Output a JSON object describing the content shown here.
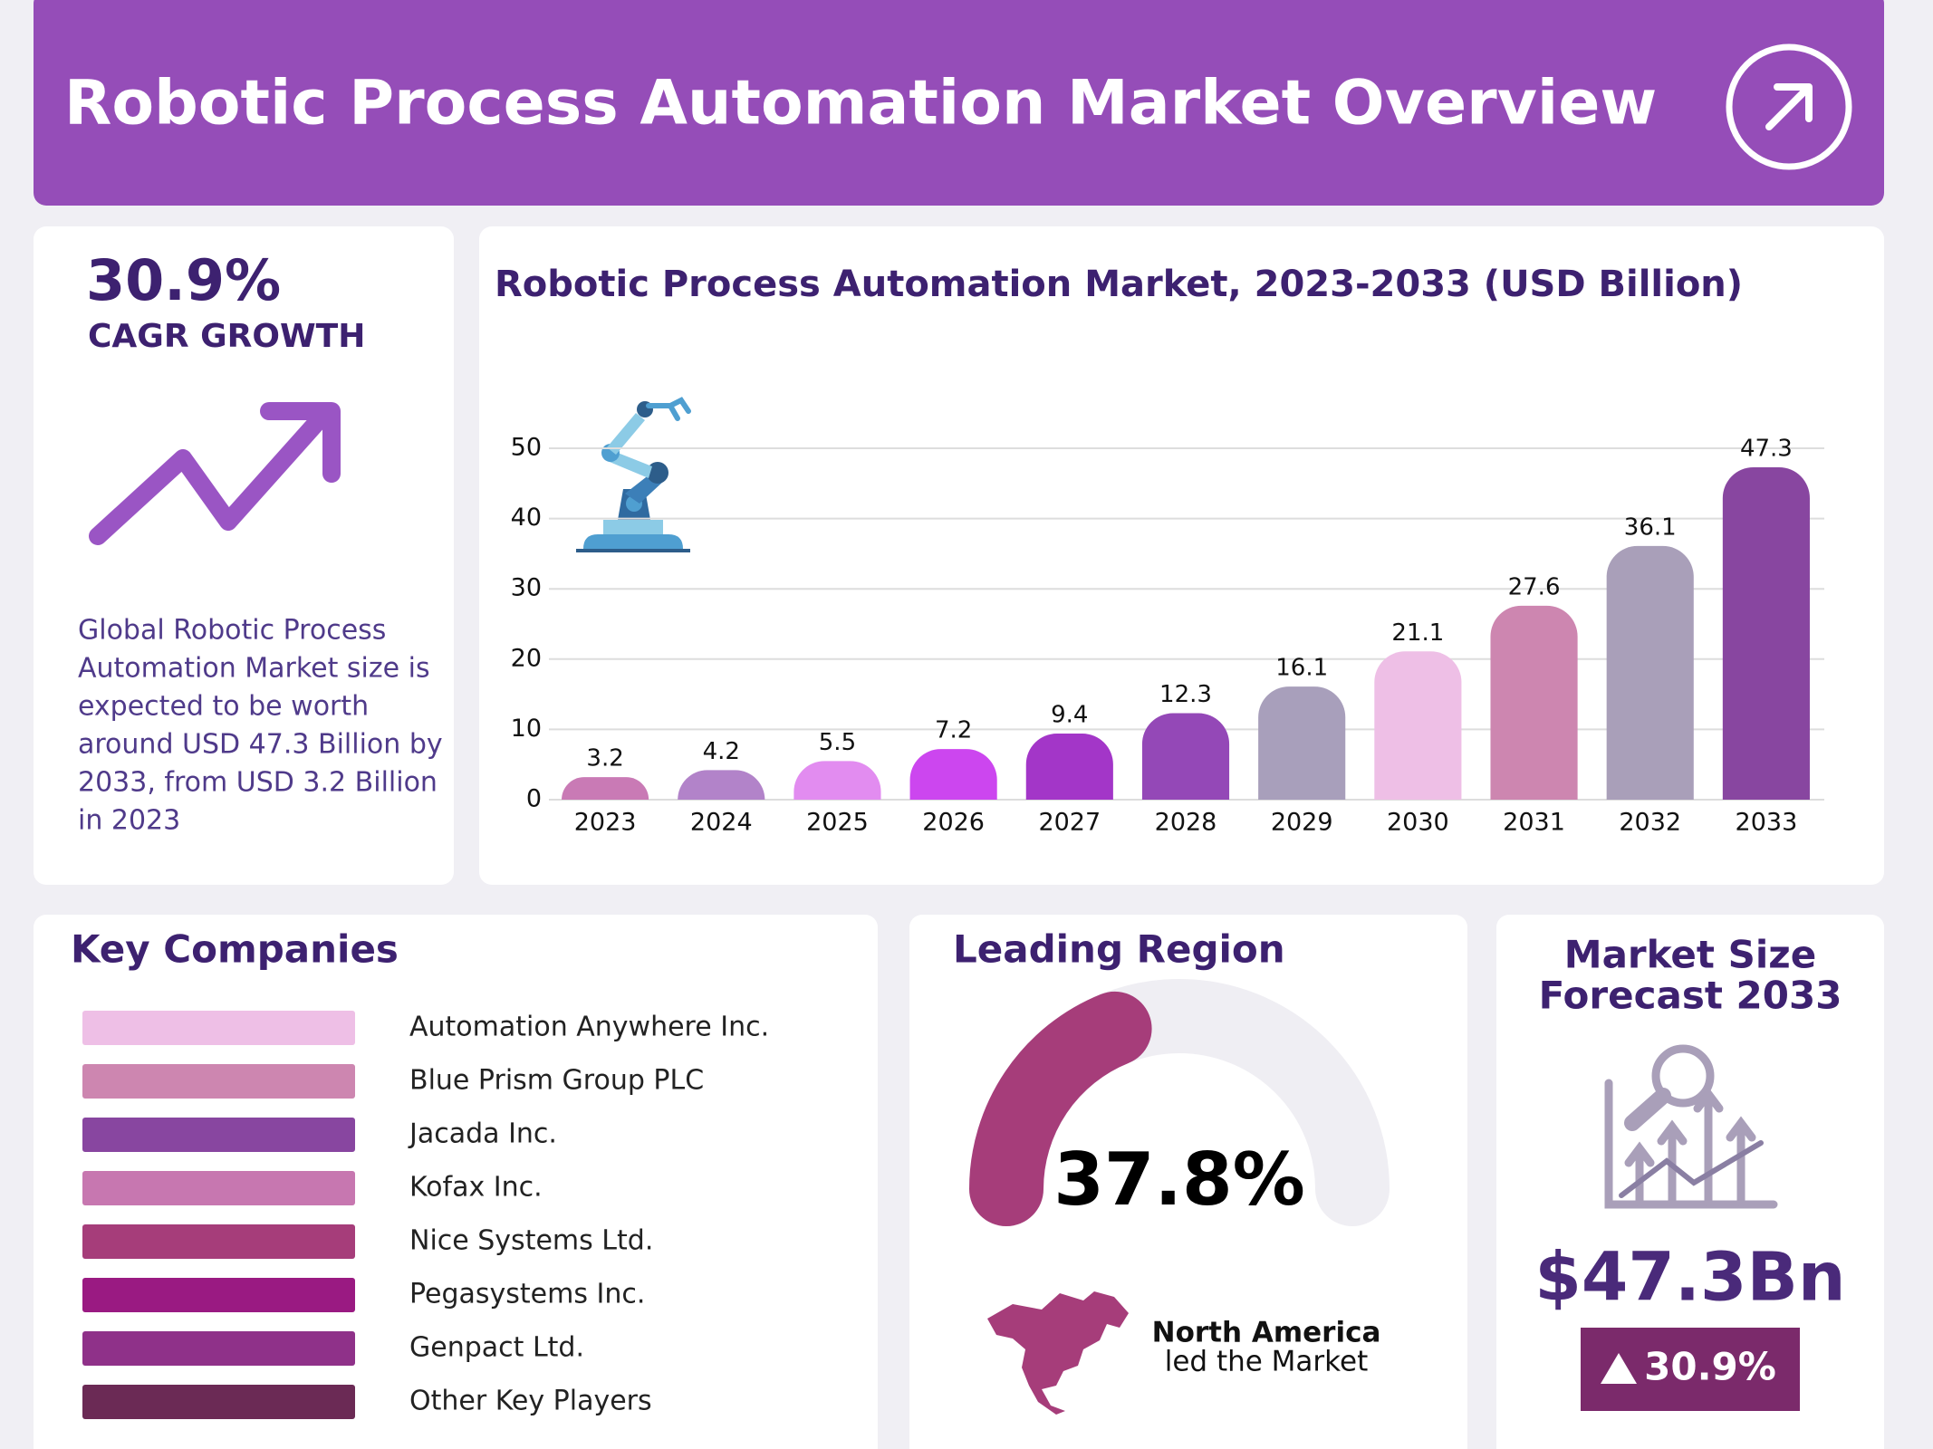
{
  "header": {
    "title": "Robotic Process Automation Market Overview"
  },
  "cagr": {
    "value": "30.9%",
    "label": "CAGR GROWTH",
    "description": [
      "Global Robotic Process",
      "Automation Market size is",
      "expected to be worth",
      "around USD 47.3 Billion by",
      "2033, from USD 3.2 Billion",
      "in 2023"
    ]
  },
  "chart_data": {
    "type": "bar",
    "title": "Robotic Process Automation Market, 2023-2033 (USD Billion)",
    "categories": [
      "2023",
      "2024",
      "2025",
      "2026",
      "2027",
      "2028",
      "2029",
      "2030",
      "2031",
      "2032",
      "2033"
    ],
    "values": [
      3.2,
      4.2,
      5.5,
      7.2,
      9.4,
      12.3,
      16.1,
      21.1,
      27.6,
      36.1,
      47.3
    ],
    "colors": [
      "#c97ab5",
      "#b283c9",
      "#e28cf0",
      "#cc46ef",
      "#a336c8",
      "#9448b7",
      "#a89fbb",
      "#eebfe6",
      "#cd86b0",
      "#a99fb9",
      "#8846a0"
    ],
    "ylim": [
      0,
      50
    ],
    "yticks": [
      0,
      10,
      20,
      30,
      40,
      50
    ],
    "grid": true
  },
  "key_companies": {
    "title": "Key Companies",
    "items": [
      "Automation Anywhere Inc.",
      "Blue Prism Group PLC",
      "Jacada Inc.",
      "Kofax Inc.",
      "Nice Systems Ltd.",
      "Pegasystems Inc.",
      "Genpact Ltd.",
      "Other Key Players"
    ],
    "colors": [
      "#eebfe6",
      "#cd86b0",
      "#8846a0",
      "#c777b0",
      "#a63d7a",
      "#9a1a82",
      "#8f3189",
      "#6b2a55"
    ]
  },
  "leading_region": {
    "title": "Leading Region",
    "share": 37.8,
    "share_label": "37.8%",
    "region": "North America",
    "note": "led the Market",
    "color": "#a63d7a"
  },
  "forecast": {
    "title": [
      "Market Size",
      "Forecast 2033"
    ],
    "value": "$47.3Bn",
    "growth": "30.9%"
  }
}
